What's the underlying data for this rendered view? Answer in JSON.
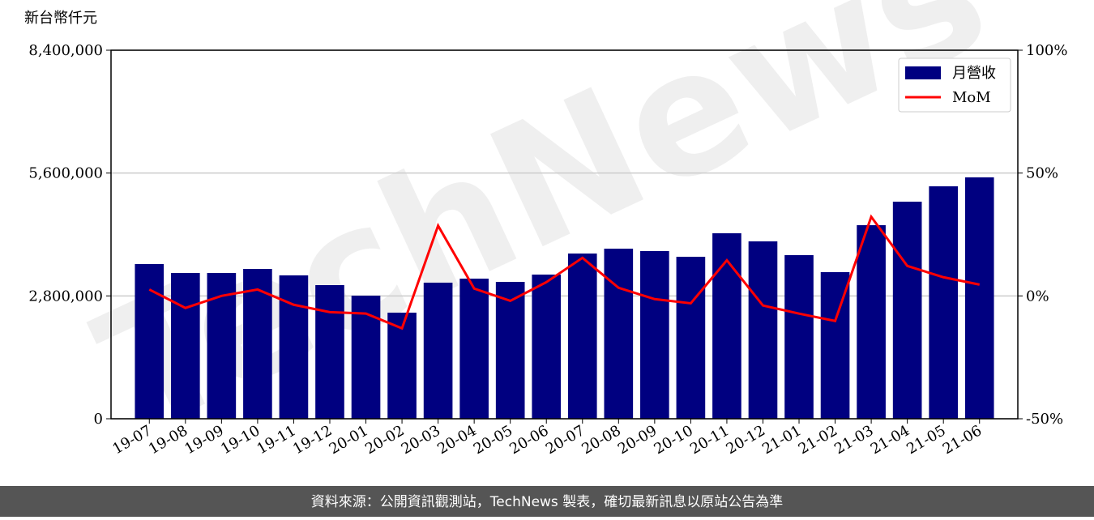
{
  "chart_data": {
    "type": "bar-line",
    "y_label": "新台幣仟元",
    "watermark": "TechNews",
    "footer": "資料來源：公開資訊觀測站，TechNews 製表，確切最新訊息以原站公告為準",
    "categories": [
      "19-07",
      "19-08",
      "19-09",
      "19-10",
      "19-11",
      "19-12",
      "20-01",
      "20-02",
      "20-03",
      "20-04",
      "20-05",
      "20-06",
      "20-07",
      "20-08",
      "20-09",
      "20-10",
      "20-11",
      "20-12",
      "21-01",
      "21-02",
      "21-03",
      "21-04",
      "21-05",
      "21-06"
    ],
    "series": [
      {
        "name": "月營收",
        "type": "bar",
        "color": "#000080",
        "values": [
          3526000,
          3323000,
          3323000,
          3415000,
          3268000,
          3046000,
          2806000,
          2418000,
          3102000,
          3194000,
          3120000,
          3286000,
          3766000,
          3877000,
          3822000,
          3692000,
          4228000,
          4043000,
          3729000,
          3342000,
          4412000,
          4948000,
          5298000,
          5502000
        ]
      },
      {
        "name": "MoM",
        "type": "line",
        "axis": "y2",
        "color": "#ff0000",
        "values": [
          2.6,
          -4.9,
          0,
          2.6,
          -3.6,
          -6.6,
          -7.2,
          -13.2,
          28.6,
          3.0,
          -2.0,
          5.6,
          15.5,
          3.3,
          -1.3,
          -3.0,
          14.5,
          -3.9,
          -7.2,
          -10.2,
          32.2,
          12.2,
          7.6,
          4.6
        ]
      }
    ],
    "ylim": [
      0,
      8400000
    ],
    "yticks": [
      0,
      {
        "value": 2800000,
        "label": "2,800,000"
      },
      {
        "value": 5600000,
        "label": "5,600,000"
      },
      {
        "value": 8400000,
        "label": "8,400,000"
      }
    ],
    "y2lim": [
      -50,
      100
    ],
    "y2ticks": [
      {
        "value": -50,
        "label": "-50%"
      },
      {
        "value": 0,
        "label": "0%"
      },
      {
        "value": 50,
        "label": "50%"
      },
      {
        "value": 100,
        "label": "100%"
      }
    ],
    "grid": true,
    "legend": "upper right"
  }
}
